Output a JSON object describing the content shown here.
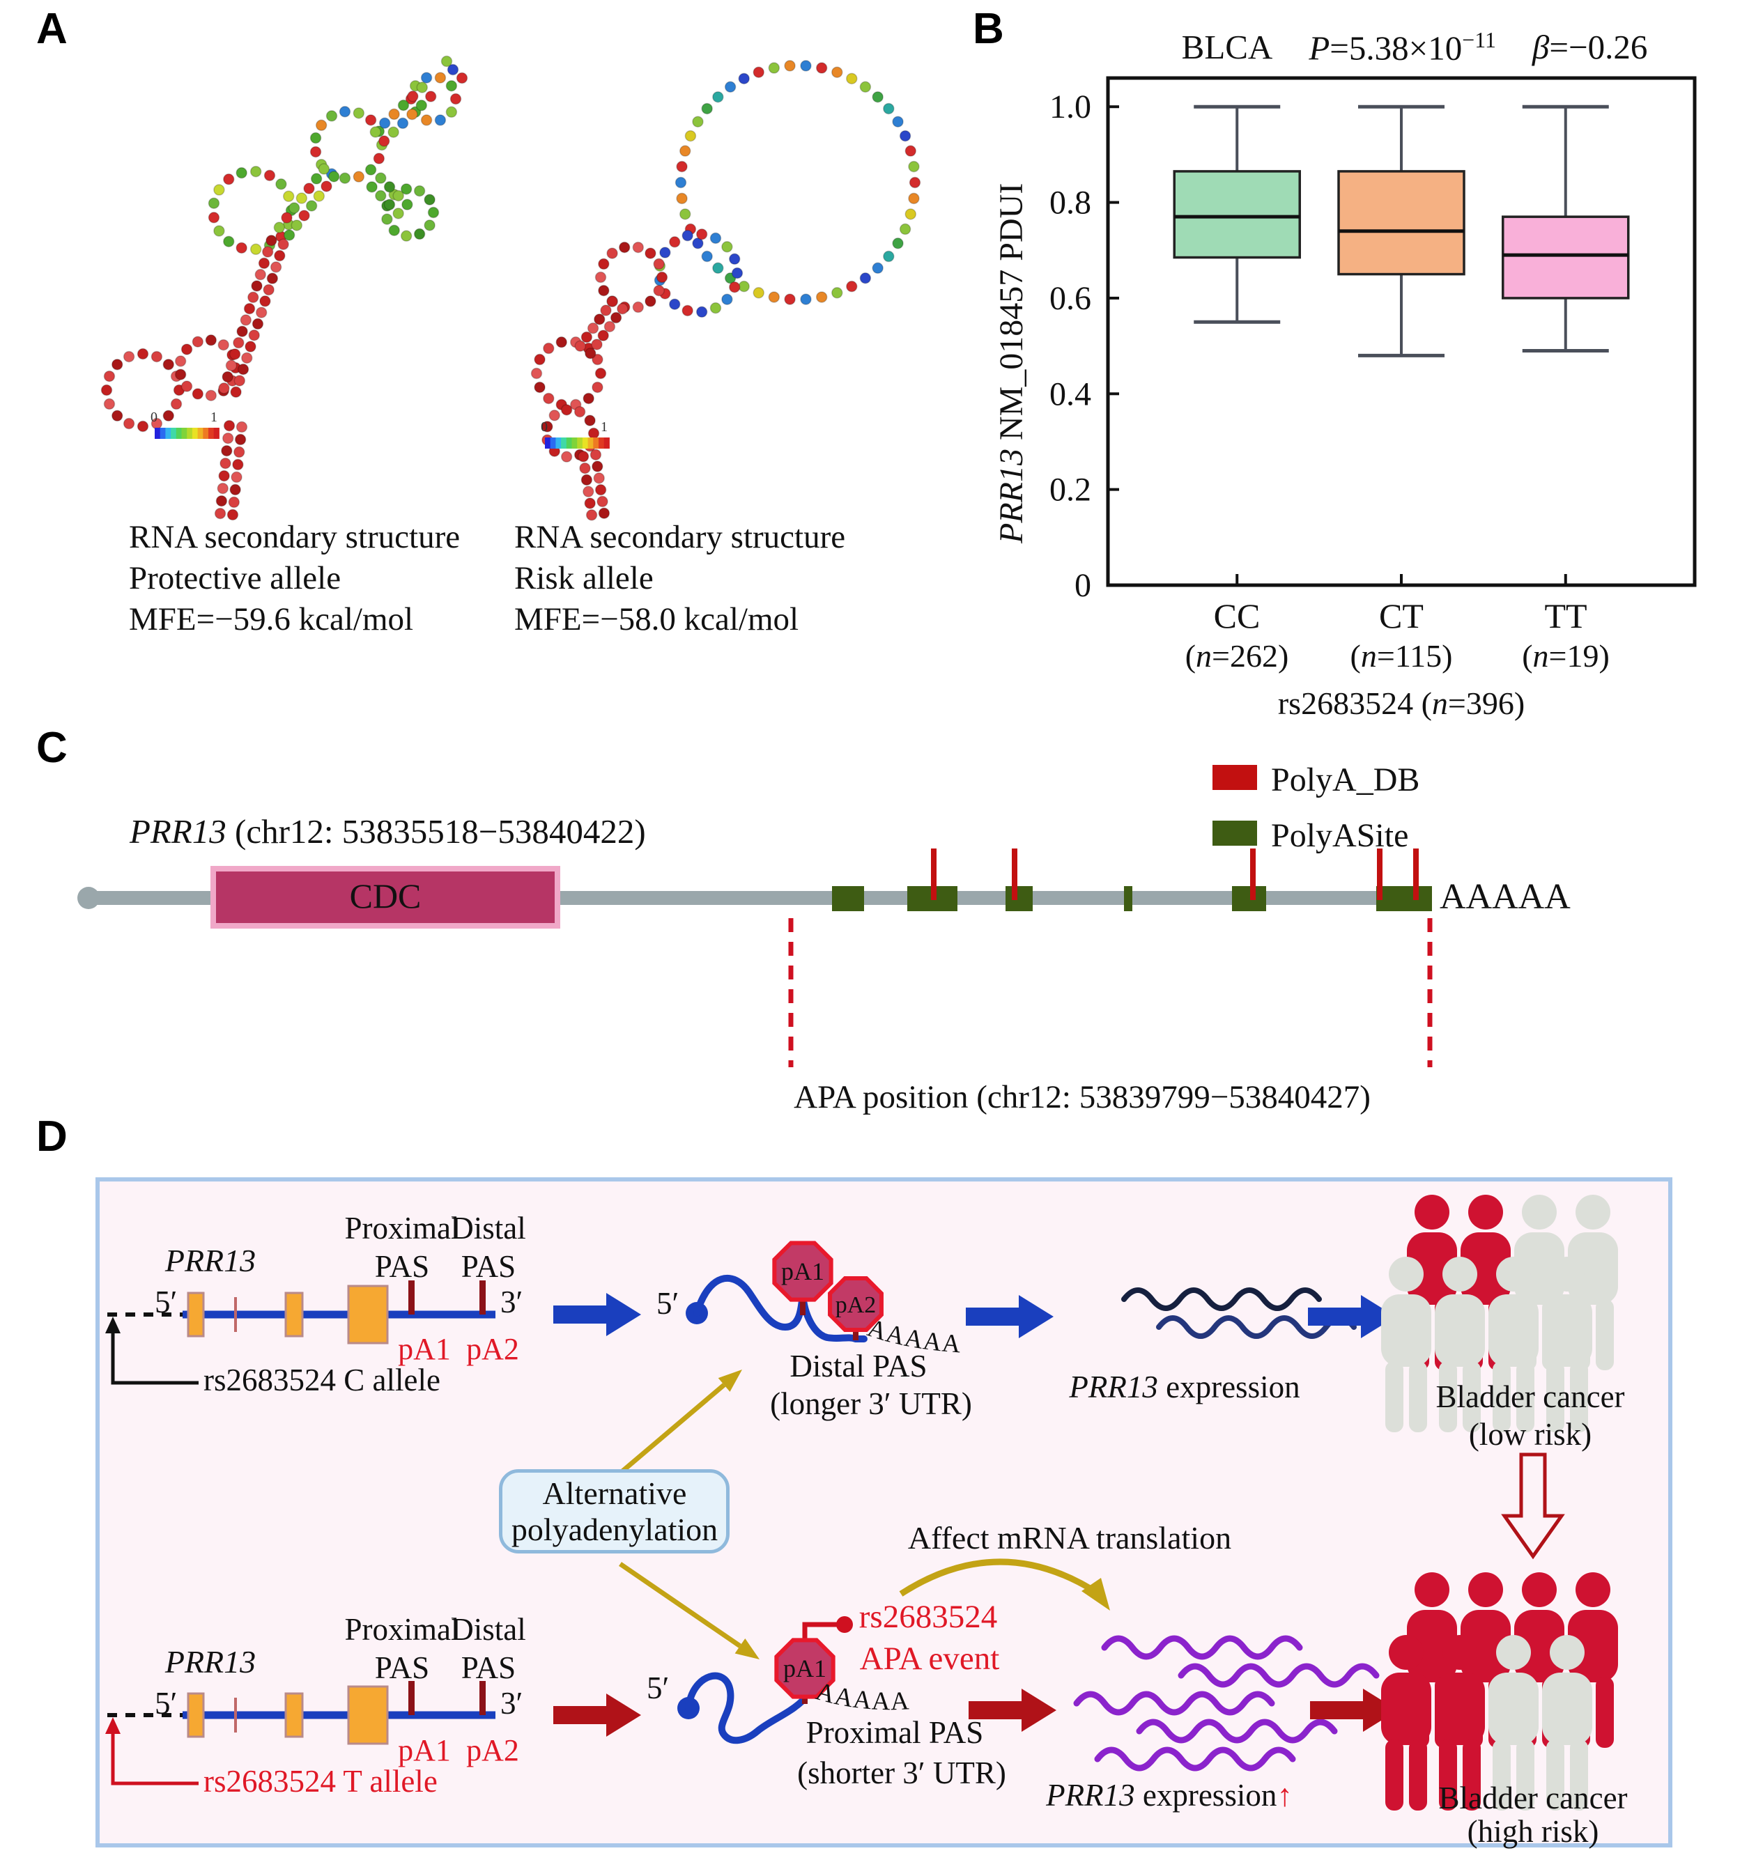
{
  "colors": {
    "blue_arrow": "#1a3fbe",
    "red_arrow": "#b01218",
    "yellow_arrow": "#c3a315",
    "purple_wave": "#8b23cc",
    "navy_wave1": "#16203f",
    "navy_wave2": "#24367c",
    "person_red": "#cf1231",
    "person_gray": "#dcdfd9",
    "hex_fill": "#c23a66",
    "hex_stroke": "#e8192c",
    "hex_stem": "#8c1218",
    "exon_orange": "#f6a832",
    "gene_line_blue": "#1a3fbe",
    "pas_tick": "#8c1218",
    "bright_red": "#e01826",
    "connector_red": "#cf1020",
    "polyadb_red": "#c21010",
    "polyasite_green": "#3e5c13",
    "cdc_fill": "#b63565",
    "cdc_border": "#f0a8c8",
    "utr_gray": "#9aa7ab",
    "panel_d_bg": "#fdf3f8",
    "panel_d_border": "#a9c7ea"
  },
  "panel_a": {
    "label": "A",
    "scale_min": "0",
    "scale_max": "1",
    "left_caption": [
      "RNA secondary structure",
      "Protective allele",
      "MFE=−59.6 kcal/mol"
    ],
    "right_caption": [
      "RNA secondary structure",
      "Risk allele",
      "MFE=−58.0 kcal/mol"
    ]
  },
  "panel_b": {
    "label": "B",
    "title": {
      "cohort": "BLCA",
      "p_var": "P",
      "p_val": "=5.38×10",
      "p_exp": "−11",
      "beta_var": "β",
      "beta_val": "=−0.26"
    },
    "ylabel": {
      "gene": "PRR13",
      "rest": " NM_018457 PDUI"
    }
  },
  "chart_data": {
    "type": "boxplot",
    "title": "BLCA  P=5.38×10−11  β=−0.26",
    "ylabel": "PRR13 NM_018457 PDUI",
    "xlabel": {
      "pre": "rs2683524 (",
      "var": "n",
      "rest": "=396)"
    },
    "ylim": [
      0,
      1.06
    ],
    "yticks": [
      "0",
      "0.2",
      "0.4",
      "0.6",
      "0.8",
      "1.0"
    ],
    "ytick_values": [
      0,
      0.2,
      0.4,
      0.6,
      0.8,
      1.0
    ],
    "categories": [
      "CC",
      "CT",
      "TT"
    ],
    "counts": [
      {
        "open": "(",
        "var": "n",
        "rest": "=262)"
      },
      {
        "open": "(",
        "var": "n",
        "rest": "=115)"
      },
      {
        "open": "(",
        "var": "n",
        "rest": "=19)"
      }
    ],
    "grid": false,
    "legend_position": "none",
    "series": [
      {
        "category": "CC",
        "n": 262,
        "whisker_low": 0.55,
        "q1": 0.685,
        "median": 0.77,
        "q3": 0.865,
        "whisker_high": 1.0,
        "color": "#9fdbb5"
      },
      {
        "category": "CT",
        "n": 115,
        "whisker_low": 0.48,
        "q1": 0.65,
        "median": 0.74,
        "q3": 0.865,
        "whisker_high": 1.0,
        "color": "#f5b183"
      },
      {
        "category": "TT",
        "n": 19,
        "whisker_low": 0.49,
        "q1": 0.6,
        "median": 0.69,
        "q3": 0.77,
        "whisker_high": 1.0,
        "color": "#f9b0d9"
      }
    ]
  },
  "panel_c": {
    "label": "C",
    "gene_title": {
      "gene": "PRR13",
      "rest": " (chr12: 53835518−53840422)"
    },
    "cdc_label": "CDC",
    "legend": [
      {
        "label": "PolyA_DB",
        "color": "#c21010"
      },
      {
        "label": "PolyASite",
        "color": "#3e5c13"
      }
    ],
    "polya_tail": "AAAAA",
    "apa_label": "APA position (chr12: 53839799−53840427)"
  },
  "panel_d": {
    "label": "D",
    "top": {
      "gene": "PRR13",
      "five_prime": "5′",
      "three_prime": "3′",
      "proximal": "Proximal",
      "distal": "Distal",
      "pas_left": "PAS",
      "pas_right": "PAS",
      "pa1": "pA1",
      "pa2": "pA2",
      "allele": "rs2683524 C allele",
      "mrna_five_prime": "5′",
      "hex1": "pA1",
      "hex2": "pA2",
      "polya": "AAAAAAAA",
      "result_line1": "Distal PAS",
      "result_line2": "(longer 3′ UTR)",
      "expr_gene": "PRR13",
      "expr_rest": " expression",
      "cancer_line1": "Bladder cancer",
      "cancer_line2": "(low risk)"
    },
    "middle": {
      "alt_line1": "Alternative",
      "alt_line2": "polyadenylation",
      "affect": "Affect mRNA translation"
    },
    "bottom": {
      "gene": "PRR13",
      "five_prime": "5′",
      "three_prime": "3′",
      "proximal": "Proximal",
      "distal": "Distal",
      "pas_left": "PAS",
      "pas_right": "PAS",
      "pa1": "pA1",
      "pa2": "pA2",
      "allele": "rs2683524 T allele",
      "mrna_five_prime": "5′",
      "hex1": "pA1",
      "snp_line1": "rs2683524",
      "snp_line2": "APA event",
      "polya": "AAAAAAA",
      "result_line1": "Proximal PAS",
      "result_line2": "(shorter 3′ UTR)",
      "expr_gene": "PRR13",
      "expr_rest": " expression",
      "expr_up": "↑",
      "cancer_line1": "Bladder cancer",
      "cancer_line2": "(high risk)"
    }
  }
}
